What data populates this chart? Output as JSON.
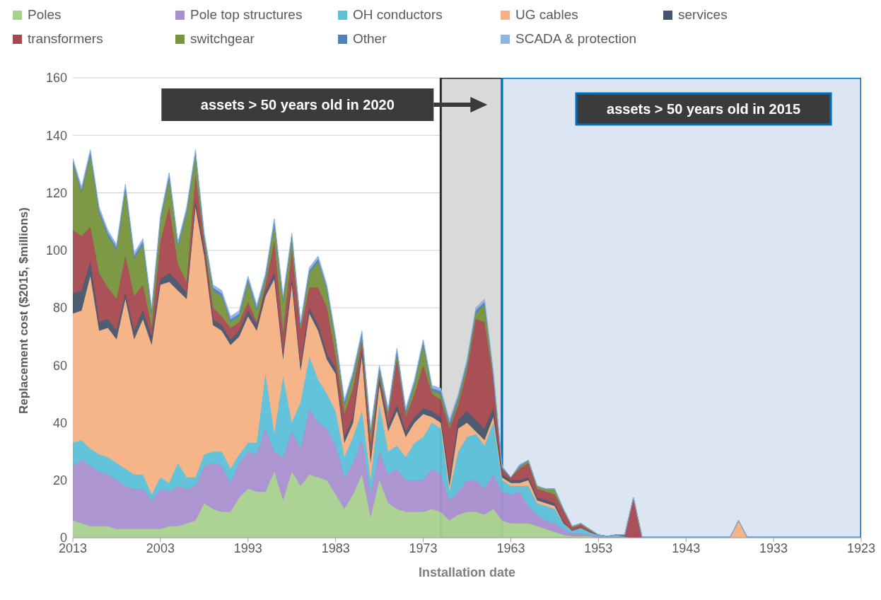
{
  "chart_data": {
    "type": "area",
    "stacked": true,
    "xlabel": "Installation date",
    "ylabel": "Replacement cost ($2015,  $millions)",
    "x": [
      2013,
      2012,
      2011,
      2010,
      2009,
      2008,
      2007,
      2006,
      2005,
      2004,
      2003,
      2002,
      2001,
      2000,
      1999,
      1998,
      1997,
      1996,
      1995,
      1994,
      1993,
      1992,
      1991,
      1990,
      1989,
      1988,
      1987,
      1986,
      1985,
      1984,
      1983,
      1982,
      1981,
      1980,
      1979,
      1978,
      1977,
      1976,
      1975,
      1974,
      1973,
      1972,
      1971,
      1970,
      1969,
      1968,
      1967,
      1966,
      1965,
      1964,
      1963,
      1962,
      1961,
      1960,
      1959,
      1958,
      1957,
      1956,
      1955,
      1954,
      1953,
      1952,
      1951,
      1950,
      1949,
      1948,
      1938,
      1937,
      1936,
      1923
    ],
    "series": [
      {
        "name": "Poles",
        "color": "#a9d18e",
        "values": [
          6,
          5,
          4,
          4,
          4,
          3,
          3,
          3,
          3,
          3,
          3,
          4,
          4,
          5,
          6,
          12,
          10,
          9,
          9,
          14,
          17,
          16,
          16,
          23,
          13,
          23,
          18,
          22,
          21,
          20,
          15,
          10,
          15,
          22,
          7,
          20,
          12,
          10,
          9,
          9,
          9,
          10,
          9,
          6,
          8,
          9,
          9,
          8,
          10,
          6,
          5,
          5,
          5,
          4,
          3,
          2,
          1,
          0.5,
          0.5,
          0.5,
          0,
          0,
          0,
          0,
          0,
          0,
          0,
          0,
          0,
          0
        ]
      },
      {
        "name": "Pole top structures",
        "color": "#a88fcf",
        "values": [
          19,
          22,
          21,
          19,
          18,
          17,
          15,
          14,
          14,
          10,
          14,
          12,
          14,
          12,
          12,
          13,
          16,
          16,
          10,
          12,
          13,
          13,
          22,
          7,
          15,
          14,
          13,
          23,
          19,
          18,
          17,
          11,
          11,
          12,
          8,
          10,
          10,
          14,
          11,
          11,
          11,
          14,
          13,
          7,
          8,
          11,
          11,
          9,
          12,
          10,
          10,
          11,
          6,
          4,
          3,
          3,
          2,
          1,
          1,
          0.5,
          0.5,
          0,
          0.5,
          0,
          0,
          0,
          0,
          0,
          0,
          0
        ]
      },
      {
        "name": "OH conductors",
        "color": "#5bc0d8",
        "values": [
          8,
          7,
          6,
          6,
          6,
          6,
          6,
          5,
          5,
          2,
          4,
          3,
          8,
          4,
          3,
          4,
          4,
          5,
          5,
          3,
          3,
          4,
          19,
          6,
          28,
          3,
          16,
          18,
          15,
          12,
          12,
          7,
          9,
          10,
          5,
          16,
          8,
          8,
          8,
          13,
          15,
          16,
          16,
          3,
          14,
          15,
          16,
          15,
          18,
          4,
          3,
          2,
          7,
          4,
          5,
          5,
          2,
          1,
          2,
          1,
          0.5,
          0.5,
          0.5,
          0.5,
          0,
          0,
          0,
          0,
          0,
          0
        ]
      },
      {
        "name": "UG cables",
        "color": "#f4b183",
        "values": [
          45,
          45,
          60,
          43,
          45,
          43,
          59,
          47,
          54,
          52,
          67,
          70,
          60,
          62,
          94,
          69,
          44,
          42,
          43,
          41,
          44,
          39,
          27,
          54,
          6,
          48,
          11,
          15,
          17,
          12,
          13,
          5,
          5,
          19,
          6,
          7,
          7,
          12,
          7,
          7,
          8,
          2,
          2,
          2,
          8,
          5,
          1,
          2,
          2,
          1,
          1,
          1,
          2,
          1,
          1,
          1,
          0,
          0,
          0,
          0,
          0,
          0,
          0,
          0,
          0,
          0,
          0,
          6,
          0,
          0
        ]
      },
      {
        "name": "services",
        "color": "#44546a",
        "values": [
          7,
          7,
          5,
          3,
          3,
          3,
          2,
          3,
          3,
          3,
          2,
          3,
          3,
          2,
          2,
          2,
          2,
          2,
          2,
          2,
          2,
          2,
          2,
          2,
          2,
          2,
          2,
          2,
          2,
          2,
          2,
          2,
          2,
          2,
          2,
          2,
          2,
          2,
          2,
          2,
          2,
          2,
          2,
          2,
          3,
          4,
          4,
          4,
          3,
          1,
          1,
          1,
          1,
          1,
          1,
          1,
          0.5,
          0,
          0,
          0,
          0,
          0,
          0,
          0,
          0,
          0,
          0,
          0,
          0,
          0
        ]
      },
      {
        "name": "transformers",
        "color": "#a6484f",
        "values": [
          22,
          19,
          12,
          17,
          11,
          11,
          13,
          12,
          9,
          3,
          13,
          23,
          6,
          4,
          9,
          3,
          4,
          3,
          4,
          3,
          3,
          1,
          2,
          11,
          7,
          10,
          12,
          7,
          13,
          16,
          4,
          8,
          10,
          3,
          5,
          1,
          3,
          16,
          5,
          8,
          15,
          6,
          6,
          18,
          5,
          14,
          35,
          37,
          10,
          2,
          1,
          4,
          5,
          3,
          3,
          3,
          4,
          1,
          1,
          0.5,
          0,
          0,
          0,
          0.5,
          14,
          0,
          0,
          0,
          0,
          0
        ]
      },
      {
        "name": "switchgear",
        "color": "#77933c",
        "values": [
          23,
          15,
          25,
          21,
          18,
          17,
          23,
          13,
          14,
          5,
          7,
          10,
          6,
          24,
          7,
          1,
          6,
          7,
          2,
          2,
          7,
          4,
          2,
          6,
          11,
          4,
          1,
          5,
          9,
          6,
          5,
          3,
          4,
          2,
          3,
          2,
          1,
          2,
          1,
          3,
          7,
          1,
          2,
          1,
          2,
          2,
          2,
          6,
          1,
          0,
          0,
          0.5,
          1,
          1,
          1,
          2,
          0.5,
          0.5,
          0.5,
          0.5,
          0,
          0,
          0,
          0,
          0,
          0,
          0,
          0,
          0,
          0
        ]
      },
      {
        "name": "Other",
        "color": "#4f81bd",
        "values": [
          1,
          1,
          1,
          1,
          1,
          1,
          1,
          1,
          1,
          1,
          1,
          1,
          1,
          1,
          1,
          1,
          1,
          1,
          1,
          1,
          1,
          1,
          1,
          1,
          1,
          1,
          1,
          1,
          1,
          1,
          1,
          1,
          1,
          1,
          1,
          1,
          1,
          1,
          1,
          1,
          1,
          1,
          1,
          1,
          1,
          1,
          1,
          1,
          1,
          0.5,
          0,
          0.5,
          0,
          0,
          0,
          0,
          0,
          0,
          0,
          0,
          0,
          0,
          0,
          0,
          0,
          0,
          0,
          0,
          0,
          0
        ]
      },
      {
        "name": "SCADA & protection",
        "color": "#8eb4e3",
        "values": [
          1,
          1,
          1,
          1,
          1,
          1,
          1,
          1,
          1,
          1,
          1,
          1,
          1,
          1,
          1,
          1,
          1,
          1,
          1,
          1,
          1,
          1,
          1,
          1,
          1,
          1,
          1,
          1,
          1,
          1,
          1,
          1,
          1,
          1,
          1,
          1,
          1,
          1,
          1,
          1,
          1,
          1,
          1,
          1,
          1,
          1,
          1,
          1,
          1,
          0.5,
          0,
          0.5,
          0,
          0,
          0,
          0,
          0,
          0,
          0,
          0,
          0,
          0,
          0,
          0,
          0,
          0,
          0,
          0,
          0,
          0
        ]
      }
    ],
    "xlim": [
      2013,
      1923
    ],
    "xticks": [
      2013,
      2003,
      1993,
      1983,
      1973,
      1963,
      1953,
      1943,
      1933,
      1923
    ],
    "ylim": [
      0,
      160
    ],
    "yticks": [
      0,
      20,
      40,
      60,
      80,
      100,
      120,
      140,
      160
    ],
    "bands": [
      {
        "axis": "x",
        "from": 1971,
        "to": 1964,
        "color": "#d9d9d9"
      },
      {
        "axis": "x",
        "from": 1964,
        "to": 1923,
        "label": "assets > 50 years old in 2015",
        "color": "#dce6f2"
      }
    ],
    "annotations": [
      "assets > 50 years old in 2020"
    ],
    "grid": "y",
    "legend": "top"
  }
}
